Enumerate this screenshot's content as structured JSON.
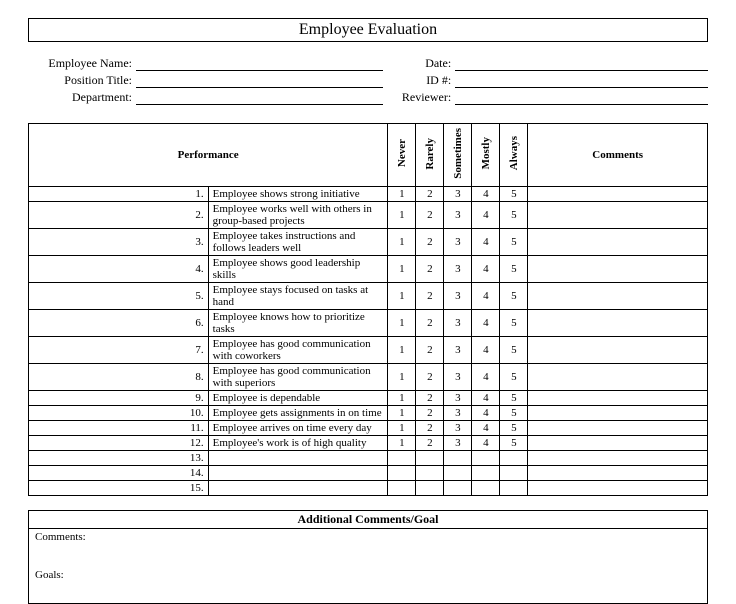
{
  "title": "Employee Evaluation",
  "info": {
    "left": [
      {
        "label": "Employee Name:"
      },
      {
        "label": "Position Title:"
      },
      {
        "label": "Department:"
      }
    ],
    "right": [
      {
        "label": "Date:"
      },
      {
        "label": "ID #:"
      },
      {
        "label": "Reviewer:"
      }
    ]
  },
  "table": {
    "headers": {
      "performance": "Performance",
      "ratings": [
        "Never",
        "Rarely",
        "Sometimes",
        "Mostly",
        "Always"
      ],
      "comments": "Comments"
    },
    "rating_values": [
      "1",
      "2",
      "3",
      "4",
      "5"
    ],
    "rows": [
      {
        "num": "1.",
        "text": "Employee shows strong initiative"
      },
      {
        "num": "2.",
        "text": "Employee works well with others in group-based projects"
      },
      {
        "num": "3.",
        "text": "Employee takes instructions and follows  leaders well"
      },
      {
        "num": "4.",
        "text": "Employee shows good leadership skills"
      },
      {
        "num": "5.",
        "text": "Employee stays focused on tasks at hand"
      },
      {
        "num": "6.",
        "text": "Employee knows how to prioritize tasks"
      },
      {
        "num": "7.",
        "text": "Employee has good communication with coworkers"
      },
      {
        "num": "8.",
        "text": "Employee has good communication with superiors"
      },
      {
        "num": "9.",
        "text": "Employee is dependable"
      },
      {
        "num": "10.",
        "text": "Employee gets assignments in on time"
      },
      {
        "num": "11.",
        "text": "Employee arrives on time every day"
      },
      {
        "num": "12.",
        "text": "Employee's work is of high quality"
      }
    ],
    "empty_rows": [
      {
        "num": "13."
      },
      {
        "num": "14."
      },
      {
        "num": "15."
      }
    ]
  },
  "additional": {
    "title": "Additional Comments/Goal",
    "comments_label": "Comments:",
    "goals_label": "Goals:"
  },
  "style": {
    "border_color": "#000000",
    "background": "#ffffff",
    "font_family": "Times New Roman",
    "title_fontsize": 16,
    "body_fontsize": 12,
    "cell_fontsize": 11
  }
}
